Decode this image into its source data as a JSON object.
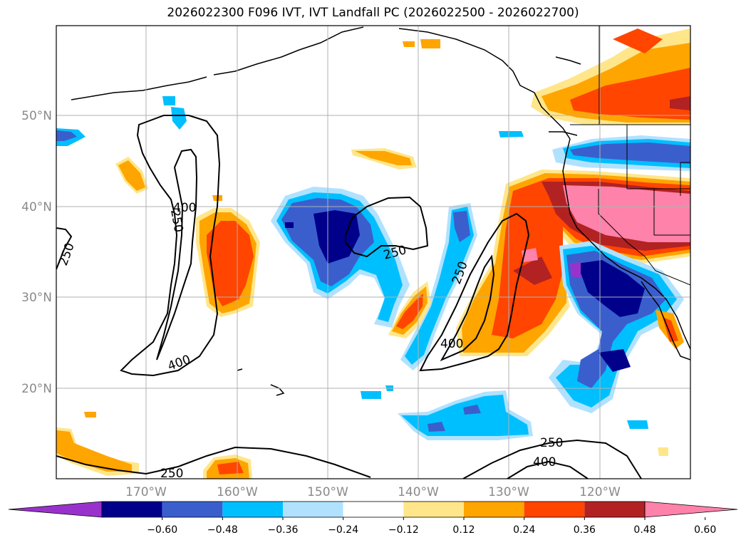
{
  "title": "2026022300 F096 IVT, IVT Landfall PC (2026022500 - 2026022700)",
  "lat_labels": [
    "50°N",
    "40°N",
    "30°N",
    "20°N"
  ],
  "lon_labels": [
    "170°W",
    "160°W",
    "150°W",
    "140°W",
    "130°W",
    "120°W"
  ],
  "contour_labels": [
    "250",
    "400",
    "250",
    "250",
    "400",
    "250",
    "400",
    "250",
    "400"
  ],
  "colorbar": {
    "ticks": [
      "−0.60",
      "−0.48",
      "−0.36",
      "−0.24",
      "−0.12",
      "0.12",
      "0.24",
      "0.36",
      "0.48",
      "0.60"
    ],
    "colors": [
      "#9932cc",
      "#00008b",
      "#3a5fcd",
      "#00bfff",
      "#b0e2ff",
      "#ffffff",
      "#ffe68a",
      "#ffa500",
      "#ff4500",
      "#b22222",
      "#ff82ab"
    ]
  }
}
